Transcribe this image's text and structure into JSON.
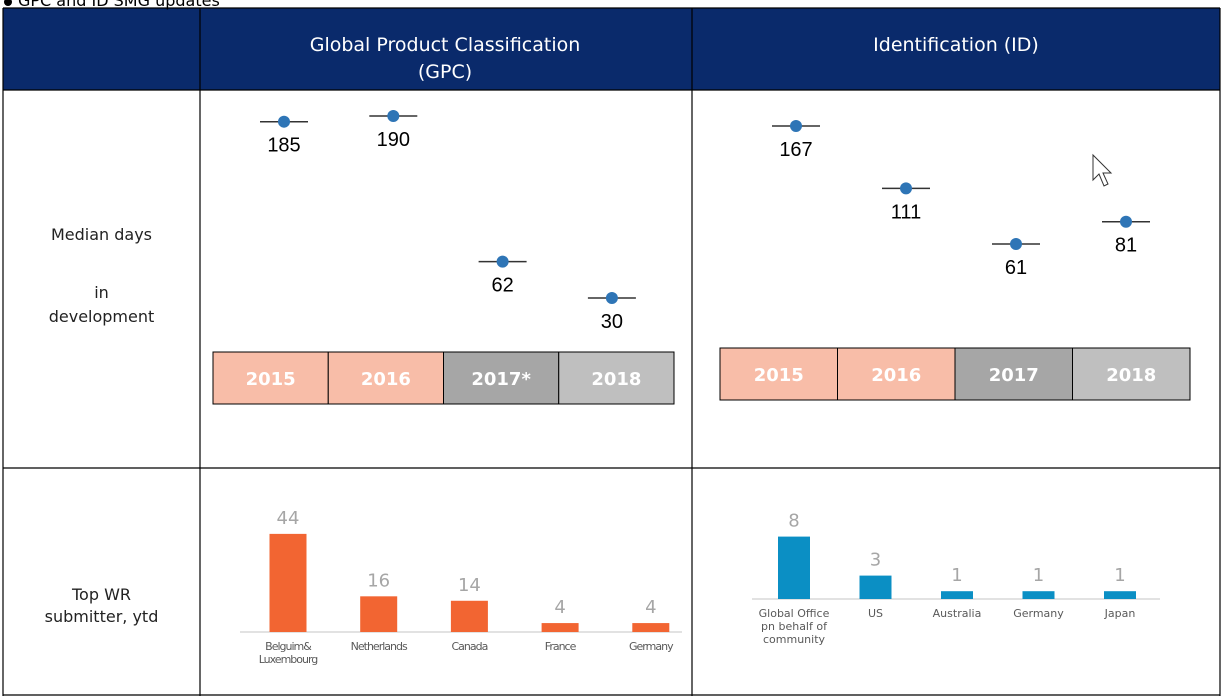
{
  "page_title": "GPC and ID SMG updates",
  "header": {
    "columns": [
      "Global Product Classification (GPC)",
      "Identification (ID)"
    ]
  },
  "rows": [
    {
      "label": [
        "Median days",
        "in",
        "development"
      ]
    },
    {
      "label": [
        "Top WR",
        "submitter, ytd"
      ]
    }
  ],
  "chart_data": [
    {
      "type": "dot",
      "categories": [
        "2015",
        "2016",
        "2017*",
        "2018"
      ],
      "values": [
        185,
        190,
        62,
        30
      ],
      "box_colors": [
        "#f8bda8",
        "#f8bda8",
        "#a6a6a6",
        "#bfbfbf"
      ],
      "color": "#2e75b6"
    },
    {
      "type": "dot",
      "categories": [
        "2015",
        "2016",
        "2017",
        "2018"
      ],
      "values": [
        167,
        111,
        61,
        81
      ],
      "box_colors": [
        "#f8bda8",
        "#f8bda8",
        "#a6a6a6",
        "#bfbfbf"
      ],
      "color": "#2e75b6"
    },
    {
      "type": "bar",
      "categories": [
        "Belguim& Luxembourg",
        "Netherlands",
        "Canada",
        "France",
        "Germany"
      ],
      "values": [
        44,
        16,
        14,
        4,
        4
      ],
      "color": "#f26532"
    },
    {
      "type": "bar",
      "categories": [
        "Global Office pn behalf of community",
        "US",
        "Australia",
        "Germany",
        "Japan"
      ],
      "values": [
        8,
        3,
        1,
        1,
        1
      ],
      "color": "#0b8fc4"
    }
  ]
}
